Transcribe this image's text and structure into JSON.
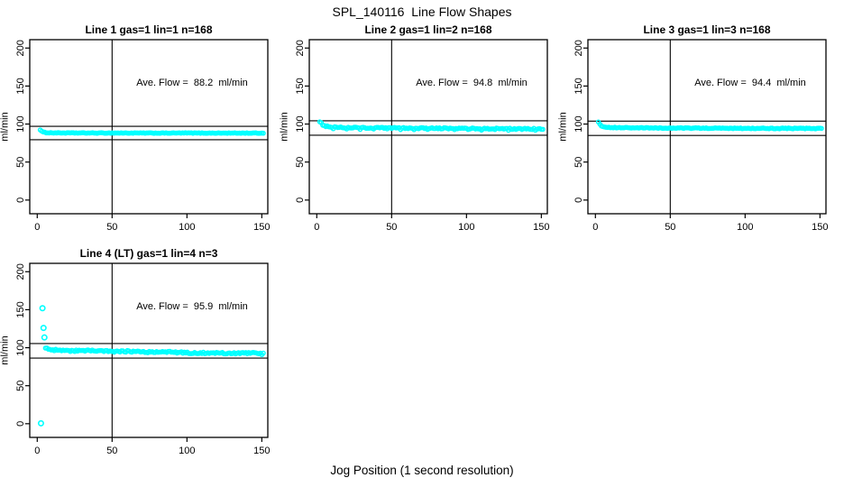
{
  "figure": {
    "title": "SPL_140116  Line Flow Shapes",
    "x_axis_label": "Jog Position (1 second resolution)",
    "background_color": "#FFFFFF",
    "text_color": "#000000"
  },
  "colors": {
    "points": "#00FFFF",
    "reference_lines": "#000000",
    "axis": "#000000"
  },
  "chart_data": [
    {
      "type": "scatter",
      "title": "Line 1 gas=1 lin=1 n=168",
      "line": 1,
      "gas": 1,
      "lin": 1,
      "n": 168,
      "ave_flow_ml_min": 88.2,
      "annotation": "Ave. Flow =  88.2  ml/min",
      "ylabel": "ml/min",
      "x_ticks": [
        0,
        50,
        100,
        150
      ],
      "y_ticks": [
        0,
        50,
        100,
        150,
        200
      ],
      "xlim": [
        -5,
        154
      ],
      "ylim": [
        -18,
        211
      ],
      "ref_line_x": 50,
      "ref_lines_y": [
        97.0,
        79.4
      ],
      "series_breakpoints": [
        [
          2,
          92.5
        ],
        [
          3,
          90.5
        ],
        [
          4,
          89.3
        ],
        [
          6,
          88.7
        ],
        [
          10,
          88.4
        ],
        [
          20,
          88.3
        ],
        [
          40,
          88.2
        ],
        [
          60,
          88.2
        ],
        [
          80,
          88.1
        ],
        [
          100,
          88.2
        ],
        [
          120,
          88.1
        ],
        [
          140,
          88.1
        ],
        [
          151,
          88.0
        ]
      ],
      "outliers": [],
      "band_halfwidth": 0.35,
      "dip_period": 0,
      "dip_depth": 0,
      "point_color": "#00FFFF"
    },
    {
      "type": "scatter",
      "title": "Line 2 gas=1 lin=2 n=168",
      "line": 2,
      "gas": 1,
      "lin": 2,
      "n": 168,
      "ave_flow_ml_min": 94.8,
      "annotation": "Ave. Flow =  94.8  ml/min",
      "ylabel": "ml/min",
      "x_ticks": [
        0,
        50,
        100,
        150
      ],
      "y_ticks": [
        0,
        50,
        100,
        150,
        200
      ],
      "xlim": [
        -5,
        154
      ],
      "ylim": [
        -18,
        211
      ],
      "ref_line_x": 50,
      "ref_lines_y": [
        104.3,
        85.3
      ],
      "series_breakpoints": [
        [
          2,
          105
        ],
        [
          3,
          101.5
        ],
        [
          4,
          99
        ],
        [
          6,
          97.3
        ],
        [
          9,
          96.2
        ],
        [
          14,
          95.6
        ],
        [
          25,
          95.2
        ],
        [
          40,
          94.9
        ],
        [
          60,
          94.7
        ],
        [
          80,
          94.4
        ],
        [
          100,
          94.2
        ],
        [
          120,
          93.9
        ],
        [
          140,
          93.6
        ],
        [
          151,
          93.5
        ]
      ],
      "outliers": [],
      "band_halfwidth": 0.8,
      "dip_period": 9,
      "dip_depth": 1.5,
      "point_color": "#00FFFF"
    },
    {
      "type": "scatter",
      "title": "Line 3 gas=1 lin=3 n=168",
      "line": 3,
      "gas": 1,
      "lin": 3,
      "n": 168,
      "ave_flow_ml_min": 94.4,
      "annotation": "Ave. Flow =  94.4  ml/min",
      "ylabel": "ml/min",
      "x_ticks": [
        0,
        50,
        100,
        150
      ],
      "y_ticks": [
        0,
        50,
        100,
        150,
        200
      ],
      "xlim": [
        -5,
        154
      ],
      "ylim": [
        -18,
        211
      ],
      "ref_line_x": 50,
      "ref_lines_y": [
        103.8,
        85.0
      ],
      "series_breakpoints": [
        [
          2,
          103
        ],
        [
          3,
          99.5
        ],
        [
          4,
          97.5
        ],
        [
          6,
          96.3
        ],
        [
          10,
          95.6
        ],
        [
          20,
          95.1
        ],
        [
          40,
          94.8
        ],
        [
          60,
          94.6
        ],
        [
          80,
          94.5
        ],
        [
          100,
          94.4
        ],
        [
          120,
          94.3
        ],
        [
          140,
          94.2
        ],
        [
          151,
          94.1
        ]
      ],
      "outliers": [],
      "band_halfwidth": 0.5,
      "dip_period": 0,
      "dip_depth": 0,
      "point_color": "#00FFFF"
    },
    {
      "type": "scatter",
      "title": "Line 4 (LT) gas=1 lin=4 n=3",
      "line": 4,
      "line_note": "LT",
      "gas": 1,
      "lin": 4,
      "n": 3,
      "ave_flow_ml_min": 95.9,
      "annotation": "Ave. Flow =  95.9  ml/min",
      "ylabel": "ml/min",
      "x_ticks": [
        0,
        50,
        100,
        150
      ],
      "y_ticks": [
        0,
        50,
        100,
        150,
        200
      ],
      "xlim": [
        -5,
        154
      ],
      "ylim": [
        -18,
        211
      ],
      "ref_line_x": 50,
      "ref_lines_y": [
        105.5,
        86.3
      ],
      "series_breakpoints": [
        [
          5.5,
          99.5
        ],
        [
          7,
          98
        ],
        [
          10,
          97
        ],
        [
          15,
          96.5
        ],
        [
          22,
          96
        ],
        [
          30,
          95.8
        ],
        [
          38,
          96.2
        ],
        [
          46,
          95.2
        ],
        [
          54,
          94.8
        ],
        [
          62,
          95.3
        ],
        [
          70,
          94.6
        ],
        [
          78,
          94.2
        ],
        [
          86,
          94.8
        ],
        [
          94,
          93.8
        ],
        [
          102,
          93.4
        ],
        [
          110,
          93.0
        ],
        [
          118,
          93.6
        ],
        [
          126,
          92.8
        ],
        [
          134,
          92.5
        ],
        [
          142,
          93.0
        ],
        [
          151,
          91.8
        ]
      ],
      "outliers": [
        [
          2.5,
          0.5
        ],
        [
          3.5,
          152
        ],
        [
          4.2,
          126
        ],
        [
          4.8,
          113.5
        ]
      ],
      "band_halfwidth": 1.1,
      "dip_period": 0,
      "dip_depth": 0,
      "point_color": "#00FFFF"
    }
  ]
}
